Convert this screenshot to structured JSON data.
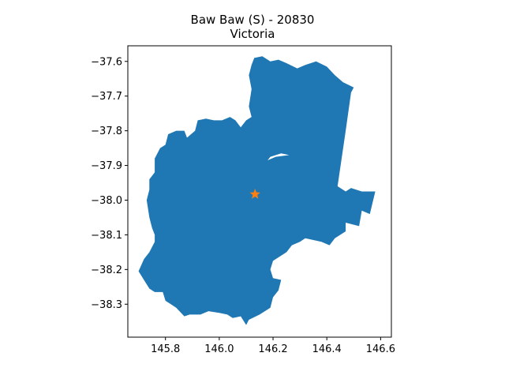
{
  "title": {
    "line1": "Baw Baw (S) - 20830",
    "line2": "Victoria"
  },
  "colors": {
    "region_fill": "#1f77b4",
    "marker": "#ff7f0e",
    "axis": "#000000"
  },
  "chart_data": {
    "type": "map",
    "region_name": "Baw Baw (S)",
    "region_code": "20830",
    "state": "Victoria",
    "xlim": [
      145.66,
      146.64
    ],
    "ylim": [
      -38.395,
      -37.555
    ],
    "x_ticks": [
      145.8,
      146.0,
      146.2,
      146.4,
      146.6
    ],
    "x_tick_labels": [
      "145.8",
      "146.0",
      "146.2",
      "146.4",
      "146.6"
    ],
    "y_ticks": [
      -37.6,
      -37.7,
      -37.8,
      -37.9,
      -38.0,
      -38.1,
      -38.2,
      -38.3
    ],
    "y_tick_labels": [
      "−37.6",
      "−37.7",
      "−37.8",
      "−37.9",
      "−38.0",
      "−38.1",
      "−38.2",
      "−38.3"
    ],
    "centroid": {
      "lon": 146.133,
      "lat": -37.983,
      "marker": "star"
    },
    "boundary": [
      [
        146.13,
        -37.59
      ],
      [
        146.16,
        -37.585
      ],
      [
        146.19,
        -37.6
      ],
      [
        146.22,
        -37.595
      ],
      [
        146.25,
        -37.605
      ],
      [
        146.29,
        -37.62
      ],
      [
        146.32,
        -37.61
      ],
      [
        146.36,
        -37.6
      ],
      [
        146.4,
        -37.615
      ],
      [
        146.43,
        -37.64
      ],
      [
        146.46,
        -37.66
      ],
      [
        146.5,
        -37.675
      ],
      [
        146.49,
        -37.69
      ],
      [
        146.47,
        -37.8
      ],
      [
        146.44,
        -37.96
      ],
      [
        146.47,
        -37.975
      ],
      [
        146.49,
        -37.965
      ],
      [
        146.53,
        -37.975
      ],
      [
        146.58,
        -37.975
      ],
      [
        146.56,
        -38.04
      ],
      [
        146.53,
        -38.03
      ],
      [
        146.52,
        -38.075
      ],
      [
        146.47,
        -38.065
      ],
      [
        146.47,
        -38.09
      ],
      [
        146.43,
        -38.11
      ],
      [
        146.41,
        -38.13
      ],
      [
        146.38,
        -38.12
      ],
      [
        146.32,
        -38.11
      ],
      [
        146.3,
        -38.12
      ],
      [
        146.27,
        -38.13
      ],
      [
        146.25,
        -38.15
      ],
      [
        146.2,
        -38.175
      ],
      [
        146.19,
        -38.2
      ],
      [
        146.2,
        -38.225
      ],
      [
        146.23,
        -38.23
      ],
      [
        146.22,
        -38.26
      ],
      [
        146.2,
        -38.28
      ],
      [
        146.19,
        -38.31
      ],
      [
        146.15,
        -38.33
      ],
      [
        146.11,
        -38.345
      ],
      [
        146.1,
        -38.36
      ],
      [
        146.08,
        -38.335
      ],
      [
        146.05,
        -38.34
      ],
      [
        146.03,
        -38.33
      ],
      [
        146.0,
        -38.325
      ],
      [
        145.96,
        -38.32
      ],
      [
        145.93,
        -38.33
      ],
      [
        145.89,
        -38.33
      ],
      [
        145.87,
        -38.335
      ],
      [
        145.84,
        -38.31
      ],
      [
        145.82,
        -38.3
      ],
      [
        145.8,
        -38.29
      ],
      [
        145.79,
        -38.265
      ],
      [
        145.76,
        -38.265
      ],
      [
        145.74,
        -38.255
      ],
      [
        145.72,
        -38.23
      ],
      [
        145.7,
        -38.205
      ],
      [
        145.72,
        -38.17
      ],
      [
        145.74,
        -38.15
      ],
      [
        145.76,
        -38.12
      ],
      [
        145.76,
        -38.1
      ],
      [
        145.75,
        -38.08
      ],
      [
        145.74,
        -38.05
      ],
      [
        145.73,
        -38.0
      ],
      [
        145.74,
        -37.97
      ],
      [
        145.74,
        -37.94
      ],
      [
        145.76,
        -37.92
      ],
      [
        145.76,
        -37.88
      ],
      [
        145.78,
        -37.85
      ],
      [
        145.8,
        -37.84
      ],
      [
        145.81,
        -37.81
      ],
      [
        145.84,
        -37.8
      ],
      [
        145.87,
        -37.8
      ],
      [
        145.88,
        -37.82
      ],
      [
        145.91,
        -37.8
      ],
      [
        145.92,
        -37.77
      ],
      [
        145.95,
        -37.765
      ],
      [
        145.98,
        -37.77
      ],
      [
        146.01,
        -37.77
      ],
      [
        146.04,
        -37.76
      ],
      [
        146.06,
        -37.77
      ],
      [
        146.08,
        -37.79
      ],
      [
        146.1,
        -37.77
      ],
      [
        146.12,
        -37.76
      ],
      [
        146.11,
        -37.73
      ],
      [
        146.12,
        -37.68
      ],
      [
        146.11,
        -37.64
      ],
      [
        146.12,
        -37.61
      ]
    ],
    "inner_gap": [
      [
        146.18,
        -37.885
      ],
      [
        146.21,
        -37.875
      ],
      [
        146.26,
        -37.87
      ],
      [
        146.23,
        -37.865
      ],
      [
        146.19,
        -37.875
      ]
    ]
  }
}
